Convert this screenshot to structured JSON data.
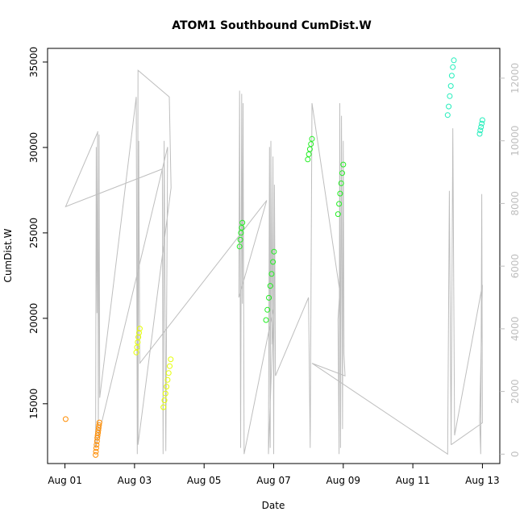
{
  "chart_data": {
    "type": "scatter",
    "title": "ATOM1 Southbound CumDist.W",
    "xlabel": "Date",
    "ylabel": "CumDist.W",
    "x_ticks": [
      "Aug 01",
      "Aug 03",
      "Aug 05",
      "Aug 07",
      "Aug 09",
      "Aug 11",
      "Aug 13"
    ],
    "x_tick_days": [
      1,
      3,
      5,
      7,
      9,
      11,
      13
    ],
    "xlim": [
      0.5,
      13.5
    ],
    "y_ticks": [
      15000,
      20000,
      25000,
      30000,
      35000
    ],
    "ylim": [
      11500,
      35800
    ],
    "y2_ticks": [
      0,
      2000,
      4000,
      6000,
      8000,
      10000,
      12000
    ],
    "y2lim": [
      -300,
      12950
    ],
    "colors": {
      "axis": "#000000",
      "right_axis": "#bebebe",
      "line": "#bebebe",
      "orange": "#ff8c00",
      "yellow": "#e5ff00",
      "green": "#22ee22",
      "cyan": "#22eebb"
    },
    "point_series": [
      {
        "color": "orange",
        "x": [
          1.02
        ],
        "y": [
          14100
        ]
      },
      {
        "color": "orange",
        "x": [
          1.88,
          1.89,
          1.9,
          1.91,
          1.92,
          1.93,
          1.94,
          1.95,
          1.96,
          1.97,
          1.98,
          1.99
        ],
        "y": [
          12000,
          12200,
          12400,
          12600,
          12800,
          13000,
          13150,
          13300,
          13450,
          13600,
          13750,
          13900
        ]
      },
      {
        "color": "yellow",
        "x": [
          3.05,
          3.07,
          3.09,
          3.11,
          3.13,
          3.15
        ],
        "y": [
          18000,
          18300,
          18600,
          18900,
          19150,
          19400
        ]
      },
      {
        "color": "yellow",
        "x": [
          3.83,
          3.86,
          3.89,
          3.92,
          3.95,
          3.98,
          4.01,
          4.04
        ],
        "y": [
          14800,
          15200,
          15600,
          16000,
          16400,
          16800,
          17200,
          17600
        ]
      },
      {
        "color": "green",
        "x": [
          6.02,
          6.04,
          6.06,
          6.08,
          6.1
        ],
        "y": [
          24200,
          24600,
          25000,
          25300,
          25600
        ]
      },
      {
        "color": "green",
        "x": [
          6.78,
          6.82,
          6.86,
          6.9,
          6.94,
          6.98,
          7.01
        ],
        "y": [
          19900,
          20500,
          21200,
          21900,
          22600,
          23300,
          23900
        ]
      },
      {
        "color": "green",
        "x": [
          7.98,
          8.01,
          8.04,
          8.07,
          8.1
        ],
        "y": [
          29300,
          29600,
          29900,
          30200,
          30500
        ]
      },
      {
        "color": "green",
        "x": [
          8.85,
          8.88,
          8.91,
          8.94,
          8.97,
          9.0
        ],
        "y": [
          26100,
          26700,
          27300,
          27900,
          28500,
          29000
        ]
      },
      {
        "color": "cyan",
        "x": [
          12.0,
          12.03,
          12.06,
          12.09,
          12.12,
          12.15,
          12.18
        ],
        "y": [
          31900,
          32400,
          33000,
          33600,
          34200,
          34700,
          35100
        ]
      },
      {
        "color": "cyan",
        "x": [
          12.92,
          12.94,
          12.96,
          12.98,
          13.0
        ],
        "y": [
          30800,
          31000,
          31200,
          31400,
          31600
        ]
      }
    ],
    "line_series": {
      "color": "line",
      "axis": "right",
      "x": [
        1.02,
        1.95,
        1.02,
        3.8,
        3.82,
        3.85,
        3.9,
        3.95,
        1.88,
        1.9,
        1.92,
        1.94,
        1.96,
        1.98,
        2.0,
        3.05,
        3.08,
        3.1,
        4.0,
        4.05,
        3.1,
        3.12,
        3.15,
        6.8,
        6.0,
        6.02,
        6.05,
        6.08,
        6.1,
        6.12,
        6.15,
        7.0,
        6.85,
        6.88,
        6.9,
        6.92,
        6.95,
        6.98,
        7.0,
        7.02,
        7.05,
        8.0,
        8.05,
        8.1,
        8.9,
        8.85,
        8.88,
        8.9,
        8.92,
        8.95,
        8.98,
        9.0,
        9.02,
        9.05,
        8.1,
        12.0,
        12.05,
        12.1,
        12.15,
        12.2,
        13.0,
        12.92,
        12.95,
        12.98,
        13.0,
        12.1
      ],
      "y": [
        7900,
        10300,
        7900,
        9100,
        0,
        10000,
        100,
        9800,
        200,
        9800,
        4500,
        10300,
        600,
        10200,
        1800,
        11400,
        0,
        12250,
        11400,
        8500,
        300,
        10000,
        2900,
        8100,
        5000,
        11600,
        200,
        11500,
        4800,
        11200,
        0,
        4700,
        0,
        9800,
        200,
        10000,
        3500,
        9500,
        0,
        8600,
        2500,
        5000,
        200,
        11200,
        5200,
        4300,
        0,
        11200,
        200,
        10800,
        800,
        10000,
        3200,
        2500,
        2900,
        0,
        8400,
        300,
        10400,
        600,
        5400,
        1100,
        0,
        8300,
        1000,
        300
      ]
    }
  }
}
